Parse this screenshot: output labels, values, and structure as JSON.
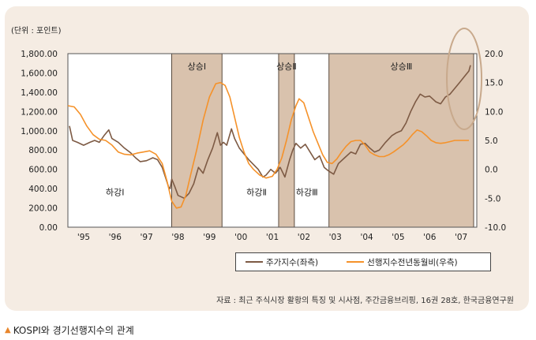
{
  "chart_data": {
    "type": "line",
    "unit_label": "(단위 : 포인트)",
    "x_ticks": [
      "'95",
      "'96",
      "'97",
      "'98",
      "'99",
      "'00",
      "'01",
      "'02",
      "'03",
      "'04",
      "'05",
      "'06",
      "'07"
    ],
    "y_left": {
      "lim": [
        0,
        1800
      ],
      "ticks": [
        "0.00",
        "200.00",
        "400.00",
        "600.00",
        "800.00",
        "1,000.00",
        "1,200.00",
        "1,400.00",
        "1,600.00",
        "1,800.00"
      ]
    },
    "y_right": {
      "lim": [
        -10,
        20
      ],
      "ticks": [
        "-10.0",
        "-5.0",
        "0.0",
        "5.0",
        "10.0",
        "15.0",
        "20.0"
      ]
    },
    "x_range": [
      1994.7,
      2007.7
    ],
    "shaded_periods": [
      {
        "label": "상승Ⅰ",
        "start": 1998.0,
        "end": 1999.6
      },
      {
        "label": "상승Ⅱ",
        "start": 2001.4,
        "end": 2001.9
      },
      {
        "label": "상승Ⅲ",
        "start": 2003.0,
        "end": 2007.6
      }
    ],
    "phase_labels": [
      {
        "label": "하강Ⅰ",
        "x": 1996.2,
        "y": 330
      },
      {
        "label": "하강Ⅱ",
        "x": 2000.7,
        "y": 330
      },
      {
        "label": "하강Ⅲ",
        "x": 2002.3,
        "y": 330
      }
    ],
    "series": [
      {
        "name": "주가지수(좌측)",
        "axis": "left",
        "color": "#7d5a44",
        "points": [
          [
            1994.75,
            1050
          ],
          [
            1994.85,
            900
          ],
          [
            1995.0,
            880
          ],
          [
            1995.2,
            850
          ],
          [
            1995.4,
            880
          ],
          [
            1995.55,
            900
          ],
          [
            1995.7,
            880
          ],
          [
            1995.85,
            950
          ],
          [
            1996.0,
            1010
          ],
          [
            1996.1,
            920
          ],
          [
            1996.3,
            880
          ],
          [
            1996.5,
            820
          ],
          [
            1996.7,
            770
          ],
          [
            1996.85,
            720
          ],
          [
            1997.0,
            680
          ],
          [
            1997.2,
            690
          ],
          [
            1997.4,
            720
          ],
          [
            1997.55,
            700
          ],
          [
            1997.7,
            620
          ],
          [
            1997.8,
            520
          ],
          [
            1997.9,
            420
          ],
          [
            1997.95,
            400
          ],
          [
            1998.0,
            500
          ],
          [
            1998.1,
            420
          ],
          [
            1998.2,
            330
          ],
          [
            1998.4,
            300
          ],
          [
            1998.55,
            350
          ],
          [
            1998.7,
            450
          ],
          [
            1998.85,
            620
          ],
          [
            1999.0,
            560
          ],
          [
            1999.15,
            700
          ],
          [
            1999.3,
            820
          ],
          [
            1999.45,
            980
          ],
          [
            1999.55,
            850
          ],
          [
            1999.65,
            880
          ],
          [
            1999.75,
            850
          ],
          [
            1999.9,
            1020
          ],
          [
            2000.0,
            920
          ],
          [
            2000.15,
            820
          ],
          [
            2000.3,
            760
          ],
          [
            2000.45,
            700
          ],
          [
            2000.6,
            650
          ],
          [
            2000.75,
            600
          ],
          [
            2000.9,
            520
          ],
          [
            2001.0,
            540
          ],
          [
            2001.15,
            600
          ],
          [
            2001.3,
            560
          ],
          [
            2001.45,
            620
          ],
          [
            2001.6,
            520
          ],
          [
            2001.75,
            700
          ],
          [
            2001.85,
            800
          ],
          [
            2001.95,
            870
          ],
          [
            2002.1,
            820
          ],
          [
            2002.25,
            860
          ],
          [
            2002.4,
            780
          ],
          [
            2002.55,
            700
          ],
          [
            2002.7,
            740
          ],
          [
            2002.85,
            620
          ],
          [
            2003.0,
            580
          ],
          [
            2003.15,
            550
          ],
          [
            2003.3,
            660
          ],
          [
            2003.5,
            720
          ],
          [
            2003.7,
            780
          ],
          [
            2003.85,
            760
          ],
          [
            2004.0,
            860
          ],
          [
            2004.15,
            870
          ],
          [
            2004.3,
            820
          ],
          [
            2004.45,
            780
          ],
          [
            2004.6,
            800
          ],
          [
            2004.8,
            880
          ],
          [
            2005.0,
            950
          ],
          [
            2005.15,
            980
          ],
          [
            2005.3,
            1000
          ],
          [
            2005.45,
            1080
          ],
          [
            2005.6,
            1200
          ],
          [
            2005.75,
            1300
          ],
          [
            2005.9,
            1380
          ],
          [
            2006.05,
            1350
          ],
          [
            2006.2,
            1360
          ],
          [
            2006.4,
            1300
          ],
          [
            2006.55,
            1280
          ],
          [
            2006.7,
            1350
          ],
          [
            2006.85,
            1380
          ],
          [
            2007.0,
            1440
          ],
          [
            2007.15,
            1500
          ],
          [
            2007.3,
            1560
          ],
          [
            2007.45,
            1620
          ],
          [
            2007.5,
            1680
          ]
        ]
      },
      {
        "name": "선행지수전년동월비(우측)",
        "axis": "right",
        "color": "#f5922a",
        "points": [
          [
            1994.7,
            11.0
          ],
          [
            1994.9,
            10.8
          ],
          [
            1995.1,
            9.5
          ],
          [
            1995.3,
            7.5
          ],
          [
            1995.5,
            6.0
          ],
          [
            1995.7,
            5.2
          ],
          [
            1995.9,
            5.0
          ],
          [
            1996.1,
            4.2
          ],
          [
            1996.3,
            3.0
          ],
          [
            1996.5,
            2.6
          ],
          [
            1996.7,
            2.5
          ],
          [
            1996.9,
            2.8
          ],
          [
            1997.1,
            3.0
          ],
          [
            1997.3,
            3.2
          ],
          [
            1997.5,
            2.6
          ],
          [
            1997.7,
            1.0
          ],
          [
            1997.85,
            -2.0
          ],
          [
            1998.0,
            -5.5
          ],
          [
            1998.15,
            -6.7
          ],
          [
            1998.3,
            -6.5
          ],
          [
            1998.45,
            -4.5
          ],
          [
            1998.6,
            -1.0
          ],
          [
            1998.8,
            3.5
          ],
          [
            1999.0,
            8.5
          ],
          [
            1999.2,
            12.5
          ],
          [
            1999.4,
            14.8
          ],
          [
            1999.55,
            15.0
          ],
          [
            1999.7,
            14.5
          ],
          [
            1999.85,
            12.5
          ],
          [
            2000.0,
            9.0
          ],
          [
            2000.15,
            5.5
          ],
          [
            2000.3,
            3.0
          ],
          [
            2000.45,
            1.0
          ],
          [
            2000.6,
            0.0
          ],
          [
            2000.8,
            -1.0
          ],
          [
            2001.0,
            -1.5
          ],
          [
            2001.2,
            -1.2
          ],
          [
            2001.35,
            0.0
          ],
          [
            2001.5,
            2.0
          ],
          [
            2001.65,
            5.0
          ],
          [
            2001.8,
            8.5
          ],
          [
            2001.95,
            11.0
          ],
          [
            2002.05,
            12.2
          ],
          [
            2002.2,
            11.5
          ],
          [
            2002.35,
            9.0
          ],
          [
            2002.5,
            6.5
          ],
          [
            2002.65,
            4.5
          ],
          [
            2002.8,
            2.5
          ],
          [
            2002.95,
            1.2
          ],
          [
            2003.1,
            1.0
          ],
          [
            2003.25,
            1.8
          ],
          [
            2003.4,
            3.0
          ],
          [
            2003.55,
            4.0
          ],
          [
            2003.7,
            4.8
          ],
          [
            2003.85,
            5.0
          ],
          [
            2004.0,
            5.0
          ],
          [
            2004.15,
            4.2
          ],
          [
            2004.3,
            3.0
          ],
          [
            2004.45,
            2.5
          ],
          [
            2004.6,
            2.2
          ],
          [
            2004.75,
            2.2
          ],
          [
            2004.9,
            2.5
          ],
          [
            2005.05,
            3.0
          ],
          [
            2005.2,
            3.6
          ],
          [
            2005.35,
            4.2
          ],
          [
            2005.5,
            5.0
          ],
          [
            2005.65,
            6.0
          ],
          [
            2005.8,
            6.8
          ],
          [
            2005.95,
            6.5
          ],
          [
            2006.1,
            5.8
          ],
          [
            2006.25,
            5.0
          ],
          [
            2006.4,
            4.6
          ],
          [
            2006.55,
            4.5
          ],
          [
            2006.7,
            4.6
          ],
          [
            2006.85,
            4.8
          ],
          [
            2007.0,
            5.0
          ],
          [
            2007.2,
            5.0
          ],
          [
            2007.45,
            5.0
          ]
        ]
      }
    ]
  },
  "source": "자료 : 최근 주식시장 활황의 특징 및 시사점, 주간금융브리핑, 16권 28호, 한국금융연구원",
  "caption": "KOSPI와 경기선행지수의 관계",
  "colors": {
    "shade": "#d9c2ad",
    "panel": "#f5ece3",
    "stock": "#7d5a44",
    "leading": "#f5922a",
    "highlight": "#c8a98c"
  }
}
